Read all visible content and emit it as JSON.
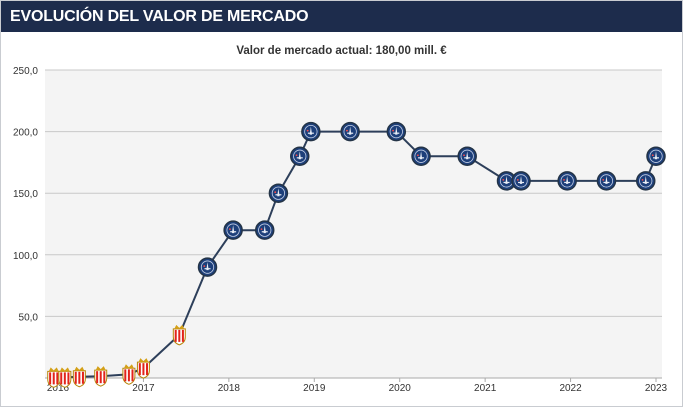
{
  "header": {
    "title": "EVOLUCIÓN DEL VALOR DE MERCADO"
  },
  "chart_data": {
    "type": "line",
    "title": "Valor de mercado actual: 180,00 mill. €",
    "xlabel": "",
    "ylabel": "",
    "x_ticks": [
      "2016",
      "2017",
      "2018",
      "2019",
      "2020",
      "2021",
      "2022",
      "2023"
    ],
    "y_ticks": [
      "250,0",
      "200,0",
      "150,0",
      "100,0",
      "50,0"
    ],
    "ylim": [
      0,
      250
    ],
    "xlim": [
      2016.0,
      2023.0
    ],
    "grid": true,
    "line_color": "#2d3f5a",
    "club_colors": {
      "monaco": "#e2231a",
      "psg": "#1d3f7a"
    },
    "series": [
      {
        "x": [
          2015.95,
          2016.08,
          2016.25,
          2016.5,
          2016.83,
          2017.0,
          2017.42,
          2017.75,
          2018.05,
          2018.42,
          2018.58,
          2018.83,
          2018.96,
          2019.42,
          2019.96,
          2020.25,
          2020.79,
          2021.25,
          2021.42,
          2021.96,
          2022.42,
          2022.88,
          2023.0
        ],
        "values": [
          0.5,
          0.5,
          1,
          1.5,
          3,
          8,
          35,
          90,
          120,
          120,
          150,
          180,
          200,
          200,
          200,
          180,
          180,
          160,
          160,
          160,
          160,
          160,
          180
        ],
        "club": [
          "monaco",
          "monaco",
          "monaco",
          "monaco",
          "monaco",
          "monaco",
          "monaco",
          "psg",
          "psg",
          "psg",
          "psg",
          "psg",
          "psg",
          "psg",
          "psg",
          "psg",
          "psg",
          "psg",
          "psg",
          "psg",
          "psg",
          "psg",
          "psg"
        ]
      }
    ]
  }
}
